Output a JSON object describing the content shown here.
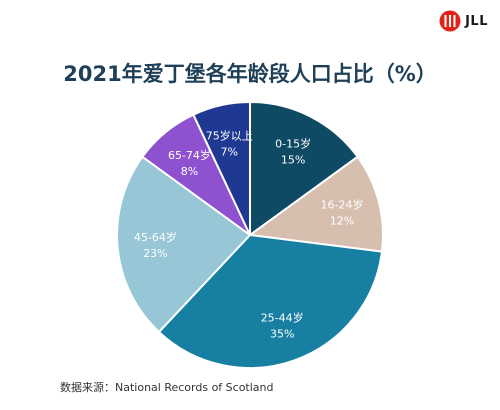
{
  "brand": {
    "logo_text": "JLL",
    "logo_color": "#e2231a"
  },
  "source_note": "数据来源：National Records of Scotland",
  "chart_data": {
    "type": "pie",
    "title": "2021年爱丁堡各年龄段人口占比（%）",
    "start": "12 o'clock, clockwise",
    "slices": [
      {
        "label": "0-15岁",
        "value": 15,
        "value_label": "15%",
        "color": "#0e4a63",
        "text_color": "#ffffff"
      },
      {
        "label": "16-24岁",
        "value": 12,
        "value_label": "12%",
        "color": "#d7bfaf",
        "text_color": "#ffffff"
      },
      {
        "label": "25-44岁",
        "value": 35,
        "value_label": "35%",
        "color": "#167fa2",
        "text_color": "#ffffff"
      },
      {
        "label": "45-64岁",
        "value": 23,
        "value_label": "23%",
        "color": "#97c6d6",
        "text_color": "#ffffff"
      },
      {
        "label": "65-74岁",
        "value": 8,
        "value_label": "8%",
        "color": "#8e52d0",
        "text_color": "#ffffff"
      },
      {
        "label": "75岁以上",
        "value": 7,
        "value_label": "7%",
        "color": "#1f3892",
        "text_color": "#ffffff"
      }
    ]
  }
}
